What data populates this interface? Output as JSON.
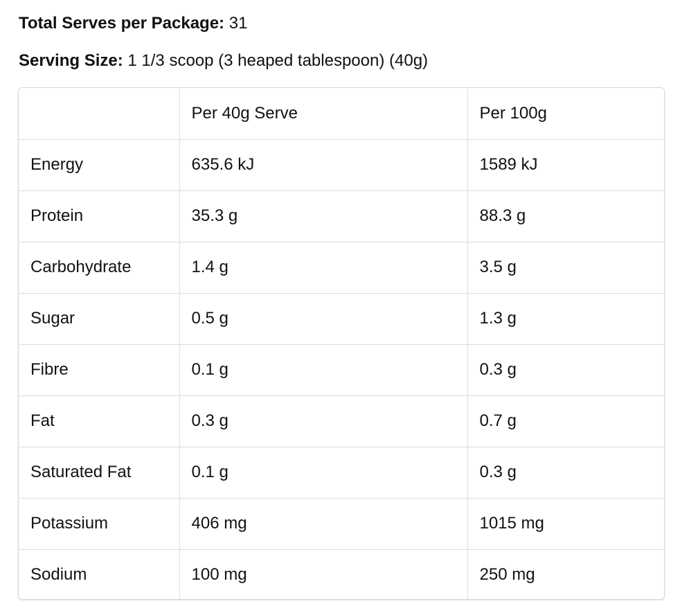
{
  "package": {
    "serves_label": "Total Serves per Package:",
    "serves_value": "31",
    "serving_size_label": "Serving Size:",
    "serving_size_value": "1 1/3 scoop (3 heaped tablespoon) (40g)"
  },
  "table": {
    "headers": [
      "",
      "Per 40g Serve",
      "Per 100g"
    ],
    "rows": [
      [
        "Energy",
        "635.6 kJ",
        "1589 kJ"
      ],
      [
        "Protein",
        "35.3 g",
        "88.3 g"
      ],
      [
        "Carbohydrate",
        "1.4 g",
        "3.5 g"
      ],
      [
        "Sugar",
        "0.5 g",
        "1.3 g"
      ],
      [
        "Fibre",
        "0.1 g",
        "0.3 g"
      ],
      [
        "Fat",
        "0.3 g",
        "0.7 g"
      ],
      [
        "Saturated Fat",
        "0.1 g",
        "0.3 g"
      ],
      [
        "Potassium",
        "406 mg",
        "1015 mg"
      ],
      [
        "Sodium",
        "100 mg",
        "250 mg"
      ]
    ]
  }
}
